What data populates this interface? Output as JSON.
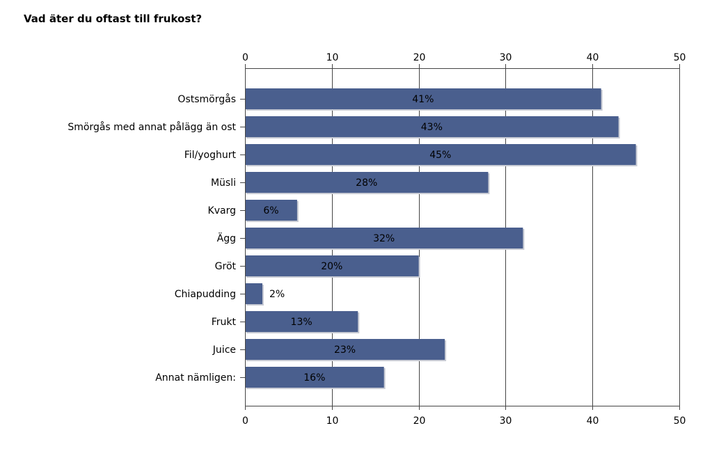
{
  "chart_data": {
    "type": "bar",
    "orientation": "horizontal",
    "title": "Vad äter du oftast till frukost?",
    "xlabel": "",
    "ylabel": "",
    "xlim": [
      0,
      50
    ],
    "x_ticks": [
      0,
      10,
      20,
      30,
      40,
      50
    ],
    "x_tick_labels": [
      "0",
      "10",
      "20",
      "30",
      "40",
      "50"
    ],
    "grid": true,
    "bar_color": "#4a5f8e",
    "categories": [
      "Ostsmörgås",
      "Smörgås med annat pålägg än ost",
      "Fil/yoghurt",
      "Müsli",
      "Kvarg",
      "Ägg",
      "Gröt",
      "Chiapudding",
      "Frukt",
      "Juice",
      "Annat nämligen:"
    ],
    "values": [
      41,
      43,
      45,
      28,
      6,
      32,
      20,
      2,
      13,
      23,
      16
    ],
    "data_labels": [
      "41%",
      "43%",
      "45%",
      "28%",
      "6%",
      "32%",
      "20%",
      "2%",
      "13%",
      "23%",
      "16%"
    ]
  }
}
